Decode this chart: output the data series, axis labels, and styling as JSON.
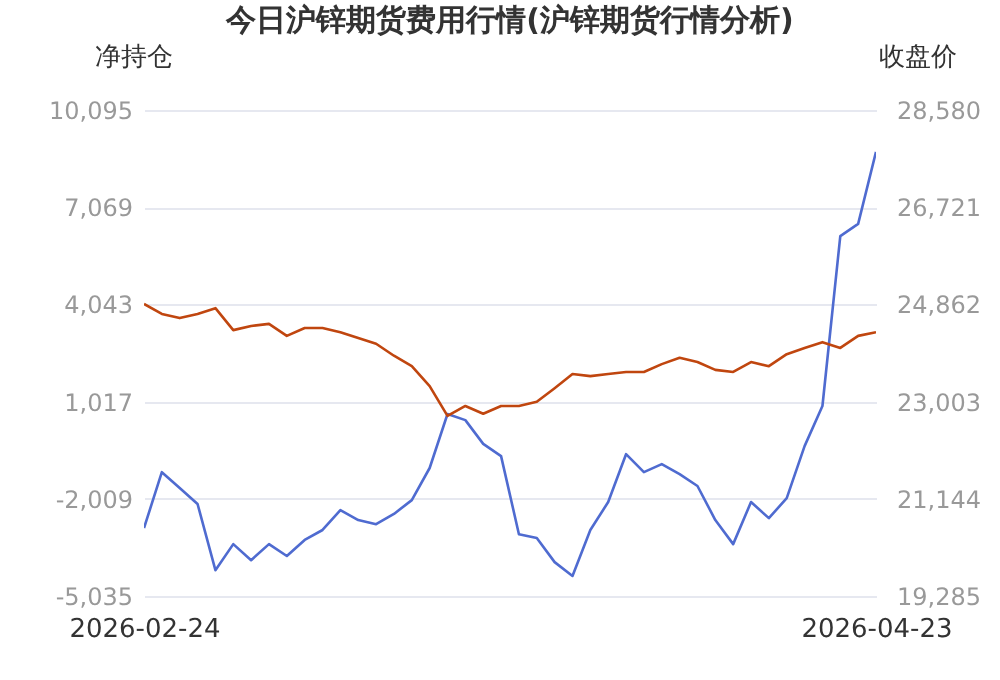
{
  "chart_data": {
    "type": "line",
    "title": "今日沪锌期货费用行情(沪锌期货行情分析)",
    "ylabel": "净持仓",
    "y2label": "收盘价",
    "categories": [
      "2026-02-24",
      null,
      null,
      null,
      null,
      null,
      null,
      null,
      null,
      null,
      null,
      null,
      null,
      null,
      null,
      null,
      null,
      null,
      null,
      null,
      null,
      null,
      null,
      null,
      null,
      null,
      null,
      null,
      null,
      null,
      null,
      null,
      null,
      null,
      null,
      null,
      null,
      null,
      null,
      null,
      null,
      "2026-04-23"
    ],
    "series": [
      {
        "color": "#4f6bd0",
        "values": [
          -2920,
          -1180,
          -1670,
          -2170,
          -4230,
          -3420,
          -3920,
          -3420,
          -3790,
          -3290,
          -2980,
          -2360,
          -2670,
          -2800,
          -2480,
          -2050,
          -1050,
          630,
          440,
          -300,
          -680,
          -3110,
          -3230,
          -3980,
          -4410,
          -2980,
          -2110,
          -620,
          -1180,
          -930,
          -1240,
          -1610,
          -2670,
          -3420,
          -2110,
          -2610,
          -1990,
          -370,
          880,
          6170,
          6550,
          8790
        ]
      },
      {
        "color": "#c0460f",
        "axis": "y2",
        "values": [
          24870,
          24680,
          24600,
          24680,
          24790,
          24370,
          24450,
          24490,
          24260,
          24410,
          24410,
          24330,
          24220,
          24110,
          23880,
          23680,
          23300,
          22730,
          22920,
          22770,
          22920,
          22920,
          23000,
          23260,
          23530,
          23490,
          23530,
          23570,
          23570,
          23720,
          23840,
          23760,
          23610,
          23570,
          23760,
          23680,
          23910,
          24030,
          24140,
          24030,
          24260,
          24330
        ]
      }
    ],
    "ylim": [
      -5035,
      10095
    ],
    "yticks": [
      {
        "value": -5035,
        "label": "-5,035"
      },
      {
        "value": -2009,
        "label": "-2,009"
      },
      {
        "value": 1017,
        "label": "1,017"
      },
      {
        "value": 4043,
        "label": "4,043"
      },
      {
        "value": 7069,
        "label": "7,069"
      },
      {
        "value": 10095,
        "label": "10,095"
      }
    ],
    "y2lim": [
      19285,
      28580
    ],
    "y2ticks": [
      {
        "value": 19285,
        "label": "19,285"
      },
      {
        "value": 21144,
        "label": "21,144"
      },
      {
        "value": 23003,
        "label": "23,003"
      },
      {
        "value": 24862,
        "label": "24,862"
      },
      {
        "value": 26721,
        "label": "26,721"
      },
      {
        "value": 28580,
        "label": "28,580"
      }
    ],
    "grid": "y"
  }
}
